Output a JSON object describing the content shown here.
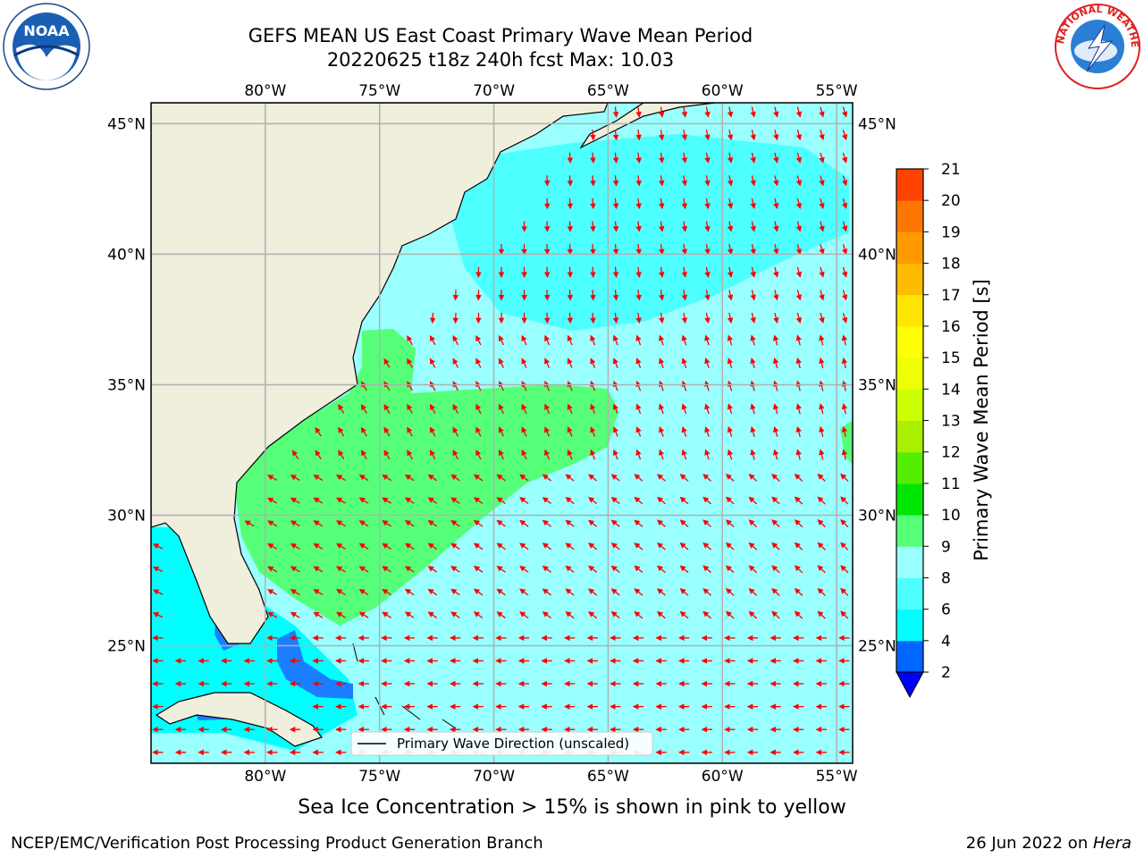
{
  "title": {
    "line1": "GEFS MEAN US East Coast Primary Wave Mean Period",
    "line2": "20220625 t18z 240h fcst   Max: 10.03"
  },
  "logos": {
    "left": {
      "icon": "noaa-logo-icon",
      "text": "NOAA"
    },
    "right": {
      "icon": "nws-logo-icon",
      "text": "NATIONAL WEATHER SERVICE"
    }
  },
  "map": {
    "lon_labels": [
      "80°W",
      "75°W",
      "70°W",
      "65°W",
      "60°W",
      "55°W"
    ],
    "lon_values": [
      -80,
      -75,
      -70,
      -65,
      -60,
      -55
    ],
    "lat_labels": [
      "45°N",
      "40°N",
      "35°N",
      "30°N",
      "25°N"
    ],
    "lat_values": [
      45,
      40,
      35,
      30,
      25
    ],
    "lon_range": [
      -85,
      -54.3
    ],
    "lat_range": [
      20.5,
      45.8
    ],
    "colors": {
      "land": "#f0eedc",
      "ocean_8_9": "#99ffff",
      "ocean_6_8": "#4dffff",
      "ocean_4_6": "#00ffff",
      "band_9_10": "#55ff77",
      "band_2_4": "#1a7fff",
      "arrow": "#ff0000",
      "grid": "#b0b0b0"
    },
    "legend_label": "Primary Wave Direction (unscaled)"
  },
  "colorbar": {
    "label": "Primary Wave Mean Period [s]",
    "ticks": [
      "21",
      "20",
      "19",
      "18",
      "17",
      "16",
      "15",
      "14",
      "13",
      "12",
      "11",
      "10",
      "9",
      "8",
      "6",
      "4",
      "2"
    ],
    "colors_bottom_to_top": [
      "#0066ff",
      "#00ffff",
      "#4dffff",
      "#99ffff",
      "#55ff77",
      "#00e600",
      "#55ee00",
      "#aaee00",
      "#ccff00",
      "#eeff00",
      "#ffff00",
      "#ffe600",
      "#ffbb00",
      "#ff9900",
      "#ff7700",
      "#ff4400",
      "#ff2200",
      "#ff0000"
    ],
    "under_color": "#0000ff"
  },
  "footer": {
    "ice_note": "Sea Ice Concentration > 15% is shown in pink to yellow",
    "branch": "NCEP/EMC/Verification Post Processing Product Generation Branch",
    "date": "26 Jun 2022 on ",
    "machine": "Hera"
  }
}
